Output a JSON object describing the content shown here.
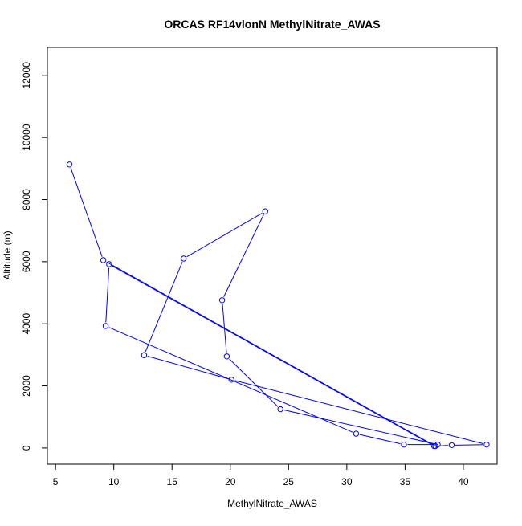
{
  "chart_data": {
    "type": "line",
    "title": "ORCAS RF14vlonN MethylNitrate_AWAS",
    "xlabel": "MethylNitrate_AWAS",
    "ylabel": "Altitude (m)",
    "xlim": [
      4.3,
      42.9
    ],
    "ylim": [
      -520,
      12900
    ],
    "xticks": [
      5,
      10,
      15,
      20,
      25,
      30,
      35,
      40
    ],
    "yticks": [
      0,
      2000,
      4000,
      6000,
      8000,
      10000,
      12000
    ],
    "grid": false,
    "legend": "none",
    "series": [
      {
        "color": "#0000ff",
        "marker": "open-circle",
        "points": [
          {
            "x": 6.2,
            "y": 9130
          },
          {
            "x": 9.1,
            "y": 6050
          },
          {
            "x": 37.6,
            "y": 60
          },
          {
            "x": 39.0,
            "y": 90
          },
          {
            "x": 42.0,
            "y": 110
          },
          {
            "x": 20.1,
            "y": 2200
          },
          {
            "x": 12.6,
            "y": 2990
          },
          {
            "x": 16.0,
            "y": 6100
          },
          {
            "x": 23.0,
            "y": 7620
          },
          {
            "x": 19.3,
            "y": 4760
          },
          {
            "x": 19.7,
            "y": 2950
          },
          {
            "x": 24.3,
            "y": 1250
          },
          {
            "x": 37.8,
            "y": 110
          },
          {
            "x": 34.9,
            "y": 110
          },
          {
            "x": 30.8,
            "y": 460
          },
          {
            "x": 9.3,
            "y": 3930
          },
          {
            "x": 9.6,
            "y": 5920
          },
          {
            "x": 37.5,
            "y": 60
          }
        ]
      }
    ]
  }
}
